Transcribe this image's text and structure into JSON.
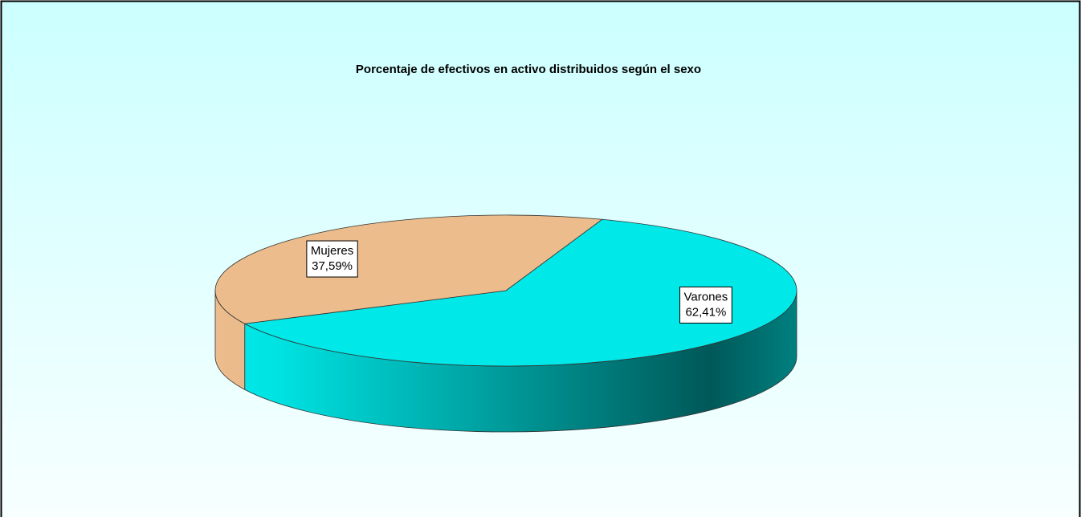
{
  "chart_data": {
    "type": "pie",
    "title": "Porcentaje de efectivos en activo distribuidos según el sexo",
    "categories": [
      "Varones",
      "Mujeres"
    ],
    "values": [
      62.41,
      37.59
    ],
    "value_labels": [
      "62,41%",
      "37,59%"
    ],
    "colors": [
      "#00e8e8",
      "#ecbc8c"
    ]
  }
}
